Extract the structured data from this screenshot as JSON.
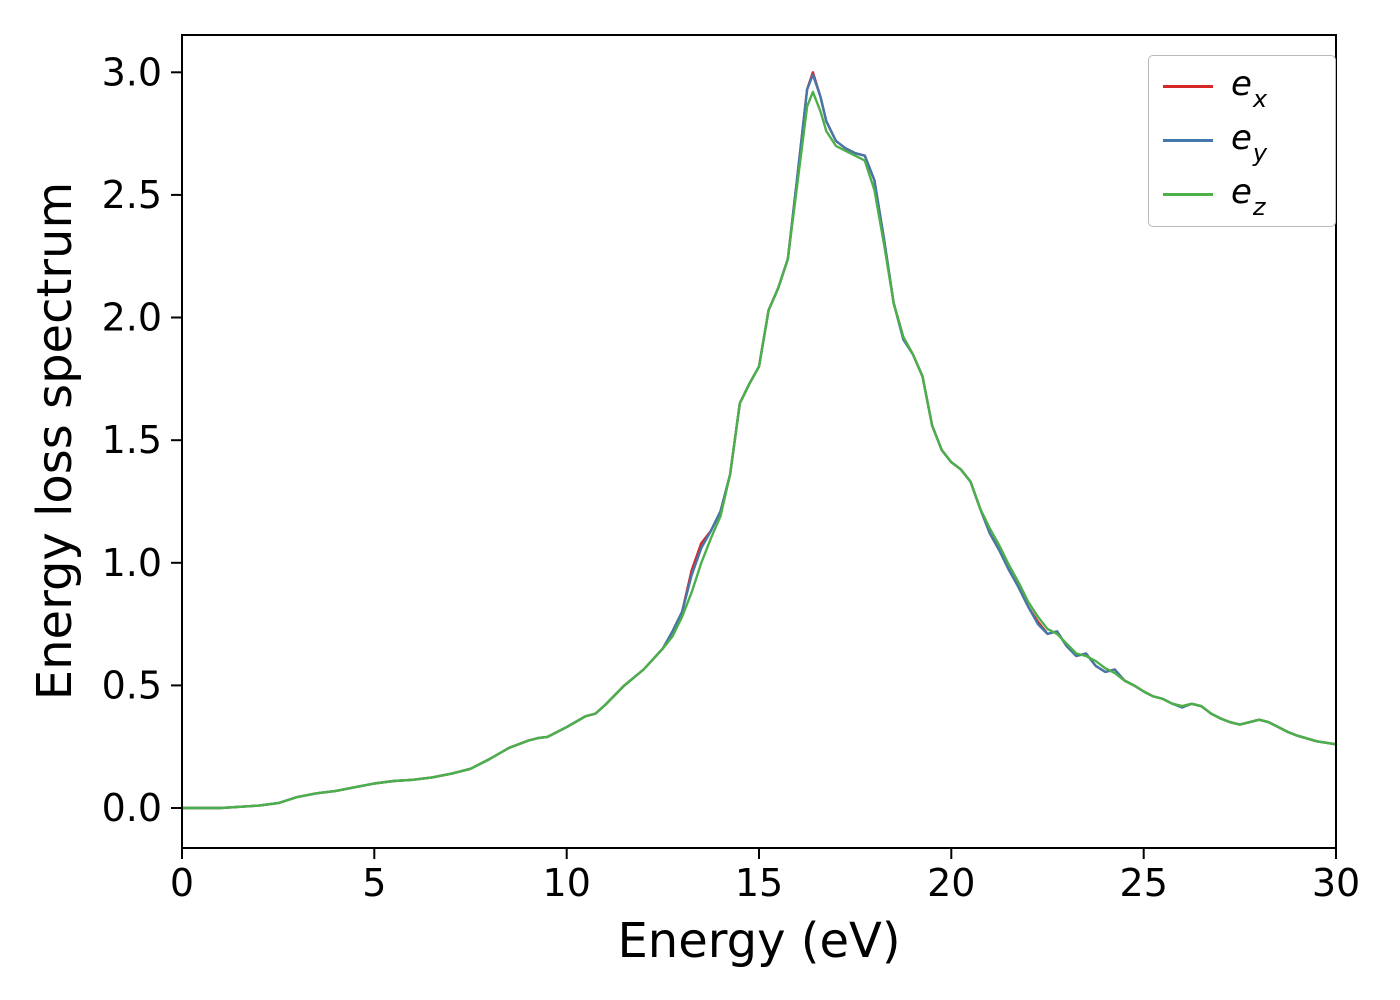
{
  "chart_data": {
    "type": "line",
    "title": "",
    "xlabel": "Energy (eV)",
    "ylabel": "Energy loss spectrum",
    "xlim": [
      0,
      30
    ],
    "ylim": [
      -0.163,
      3.152
    ],
    "grid": false,
    "legend_position": "upper right",
    "axis_color": "#000000",
    "xticks": [
      0,
      5,
      10,
      15,
      20,
      25,
      30
    ],
    "xtick_labels": [
      "0",
      "5",
      "10",
      "15",
      "20",
      "25",
      "30"
    ],
    "yticks": [
      0.0,
      0.5,
      1.0,
      1.5,
      2.0,
      2.5,
      3.0
    ],
    "ytick_labels": [
      "0.0",
      "0.5",
      "1.0",
      "1.5",
      "2.0",
      "2.5",
      "3.0"
    ],
    "x": [
      0,
      0.5,
      1,
      1.5,
      2,
      2.5,
      3,
      3.5,
      4,
      4.5,
      5,
      5.5,
      6,
      6.5,
      7,
      7.5,
      8,
      8.5,
      9,
      9.25,
      9.5,
      10,
      10.5,
      10.75,
      11,
      11.5,
      12,
      12.5,
      12.75,
      13,
      13.25,
      13.5,
      13.75,
      14,
      14.25,
      14.5,
      14.75,
      15,
      15.25,
      15.5,
      15.75,
      16,
      16.25,
      16.4,
      16.6,
      16.75,
      17,
      17.25,
      17.5,
      17.75,
      18,
      18.25,
      18.5,
      18.75,
      19,
      19.25,
      19.5,
      19.75,
      20,
      20.25,
      20.5,
      20.75,
      21,
      21.25,
      21.5,
      21.75,
      22,
      22.25,
      22.5,
      22.75,
      23,
      23.25,
      23.5,
      23.75,
      24,
      24.25,
      24.5,
      24.75,
      25,
      25.25,
      25.5,
      25.75,
      26,
      26.25,
      26.5,
      26.75,
      27,
      27.25,
      27.5,
      27.75,
      28,
      28.25,
      28.5,
      28.75,
      29,
      29.5,
      30
    ],
    "series": [
      {
        "id": "ex",
        "label_base": "e",
        "label_sub": "x",
        "color": "#d62728",
        "values": [
          0,
          0,
          0,
          0.005,
          0.01,
          0.02,
          0.045,
          0.06,
          0.07,
          0.085,
          0.1,
          0.11,
          0.115,
          0.125,
          0.14,
          0.16,
          0.2,
          0.245,
          0.275,
          0.285,
          0.29,
          0.33,
          0.375,
          0.385,
          0.42,
          0.5,
          0.565,
          0.65,
          0.72,
          0.8,
          0.97,
          1.08,
          1.13,
          1.21,
          1.36,
          1.65,
          1.73,
          1.8,
          2.03,
          2.12,
          2.24,
          2.58,
          2.93,
          3.0,
          2.9,
          2.8,
          2.72,
          2.69,
          2.67,
          2.66,
          2.56,
          2.32,
          2.06,
          1.92,
          1.85,
          1.76,
          1.56,
          1.46,
          1.41,
          1.38,
          1.33,
          1.22,
          1.12,
          1.05,
          0.97,
          0.9,
          0.82,
          0.76,
          0.71,
          0.72,
          0.66,
          0.62,
          0.63,
          0.58,
          0.555,
          0.565,
          0.52,
          0.5,
          0.475,
          0.455,
          0.445,
          0.425,
          0.415,
          0.425,
          0.415,
          0.385,
          0.365,
          0.35,
          0.34,
          0.35,
          0.36,
          0.35,
          0.33,
          0.31,
          0.295,
          0.272,
          0.26
        ]
      },
      {
        "id": "ey",
        "label_base": "e",
        "label_sub": "y",
        "color": "#4477aa",
        "values": [
          0,
          0,
          0,
          0.005,
          0.01,
          0.02,
          0.045,
          0.06,
          0.07,
          0.085,
          0.1,
          0.11,
          0.115,
          0.125,
          0.14,
          0.16,
          0.2,
          0.245,
          0.275,
          0.285,
          0.29,
          0.33,
          0.375,
          0.385,
          0.42,
          0.5,
          0.565,
          0.65,
          0.72,
          0.8,
          0.95,
          1.06,
          1.13,
          1.21,
          1.36,
          1.65,
          1.73,
          1.8,
          2.03,
          2.12,
          2.24,
          2.58,
          2.93,
          2.99,
          2.9,
          2.8,
          2.72,
          2.69,
          2.67,
          2.66,
          2.56,
          2.32,
          2.06,
          1.91,
          1.85,
          1.76,
          1.56,
          1.46,
          1.41,
          1.38,
          1.33,
          1.22,
          1.12,
          1.05,
          0.97,
          0.9,
          0.82,
          0.75,
          0.71,
          0.72,
          0.66,
          0.62,
          0.63,
          0.58,
          0.555,
          0.565,
          0.52,
          0.5,
          0.475,
          0.455,
          0.445,
          0.425,
          0.41,
          0.425,
          0.415,
          0.385,
          0.365,
          0.35,
          0.34,
          0.35,
          0.36,
          0.35,
          0.33,
          0.31,
          0.295,
          0.272,
          0.26
        ]
      },
      {
        "id": "ez",
        "label_base": "e",
        "label_sub": "z",
        "color": "#4cb04a",
        "values": [
          0,
          0,
          0,
          0.005,
          0.01,
          0.02,
          0.045,
          0.06,
          0.07,
          0.085,
          0.1,
          0.11,
          0.115,
          0.125,
          0.14,
          0.16,
          0.2,
          0.245,
          0.275,
          0.285,
          0.29,
          0.33,
          0.375,
          0.385,
          0.42,
          0.5,
          0.565,
          0.65,
          0.7,
          0.78,
          0.88,
          1.0,
          1.1,
          1.19,
          1.36,
          1.65,
          1.73,
          1.8,
          2.03,
          2.12,
          2.24,
          2.55,
          2.86,
          2.92,
          2.84,
          2.76,
          2.7,
          2.68,
          2.66,
          2.64,
          2.52,
          2.3,
          2.06,
          1.92,
          1.85,
          1.76,
          1.56,
          1.46,
          1.41,
          1.38,
          1.33,
          1.22,
          1.14,
          1.07,
          0.99,
          0.92,
          0.84,
          0.78,
          0.73,
          0.71,
          0.67,
          0.63,
          0.62,
          0.6,
          0.57,
          0.55,
          0.52,
          0.5,
          0.475,
          0.455,
          0.445,
          0.425,
          0.415,
          0.425,
          0.415,
          0.385,
          0.365,
          0.35,
          0.34,
          0.35,
          0.36,
          0.35,
          0.33,
          0.31,
          0.295,
          0.272,
          0.26
        ]
      }
    ]
  }
}
